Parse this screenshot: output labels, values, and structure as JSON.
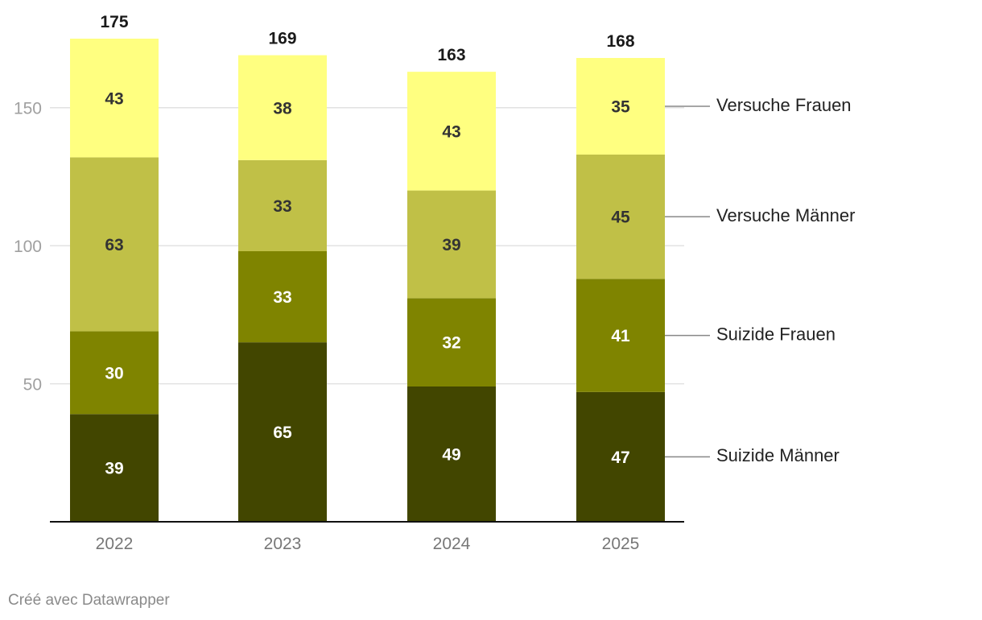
{
  "chart_data": {
    "type": "bar",
    "stacked": true,
    "categories": [
      "2022",
      "2023",
      "2024",
      "2025"
    ],
    "series": [
      {
        "name": "Suizide Männer",
        "color": "#424600",
        "label_color": "#ffffff",
        "values": [
          39,
          65,
          49,
          47
        ]
      },
      {
        "name": "Suizide Frauen",
        "color": "#7f8400",
        "label_color": "#ffffff",
        "values": [
          30,
          33,
          32,
          41
        ]
      },
      {
        "name": "Versuche Männer",
        "color": "#c0c047",
        "label_color": "#333333",
        "values": [
          63,
          33,
          39,
          45
        ]
      },
      {
        "name": "Versuche Frauen",
        "color": "#ffff80",
        "label_color": "#333333",
        "values": [
          43,
          38,
          43,
          35
        ]
      }
    ],
    "totals": [
      175,
      169,
      163,
      168
    ],
    "yticks": [
      50,
      100,
      150
    ],
    "ylim": [
      0,
      175
    ],
    "title": "",
    "xlabel": "",
    "ylabel": "",
    "grid": true,
    "legend_position": "right"
  },
  "credit": "Créé avec Datawrapper"
}
